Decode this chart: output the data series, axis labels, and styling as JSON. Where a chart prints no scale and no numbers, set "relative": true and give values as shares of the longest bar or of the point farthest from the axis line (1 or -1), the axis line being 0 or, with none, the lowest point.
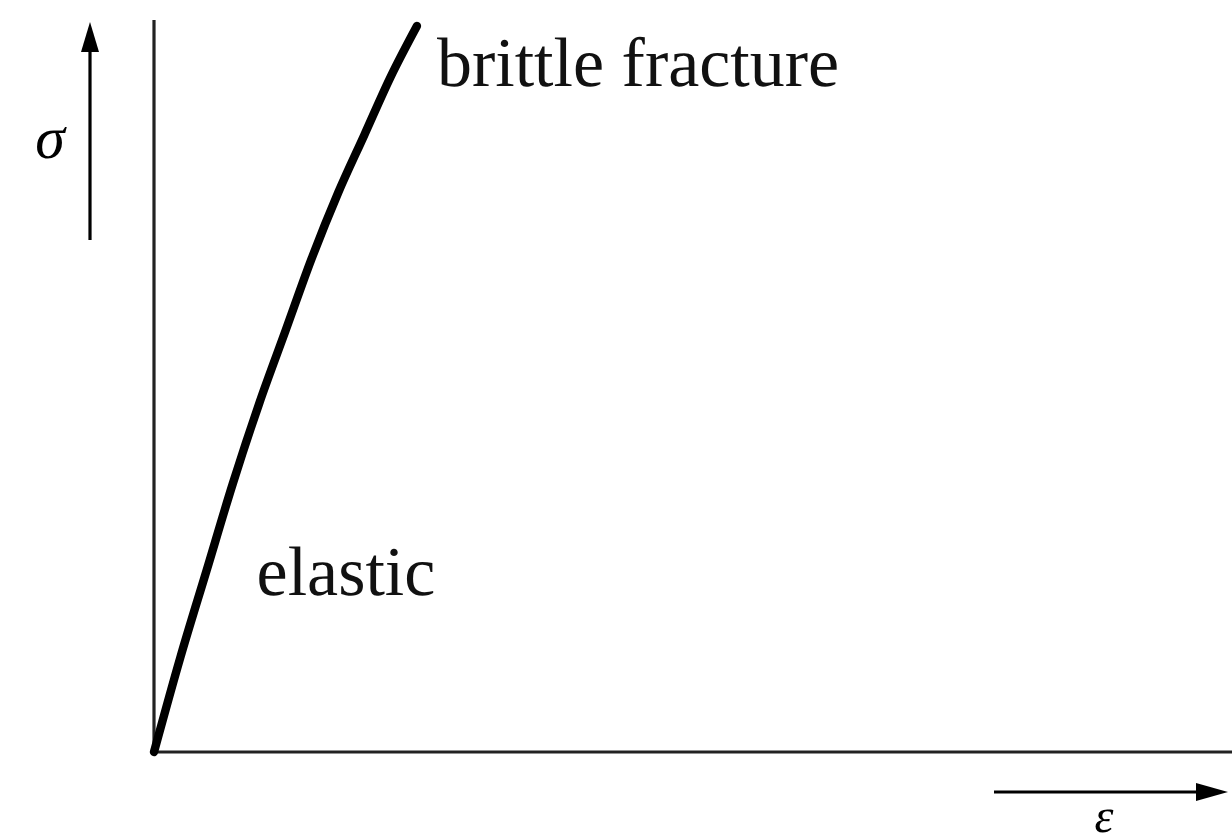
{
  "chart_data": {
    "type": "line",
    "relative": true,
    "xlabel": "ε",
    "ylabel": "σ",
    "annotations": [
      "brittle fracture",
      "elastic"
    ],
    "marker": "none",
    "line_style": "solid",
    "categories": [
      null,
      null,
      null,
      null,
      null,
      null,
      null,
      null,
      null,
      null,
      null,
      null,
      null,
      null,
      null,
      null,
      null,
      null,
      null,
      null,
      null,
      null,
      null,
      null,
      null,
      null,
      null,
      null,
      null,
      null,
      null,
      null,
      null,
      null,
      null,
      null,
      null,
      null,
      null,
      null,
      null,
      null
    ],
    "series": [
      {
        "color": "#000000",
        "values": [
          0,
          0.13,
          0.25,
          0.37,
          0.48,
          0.58,
          0.68,
          0.77,
          0.85,
          0.93,
          1,
          null,
          null,
          null,
          null,
          null,
          null,
          null,
          null,
          null,
          null,
          null,
          null,
          null,
          null,
          null,
          null,
          null,
          null,
          null,
          null,
          null,
          null,
          null,
          null,
          null,
          null,
          null,
          null,
          null,
          null,
          null
        ]
      }
    ]
  }
}
